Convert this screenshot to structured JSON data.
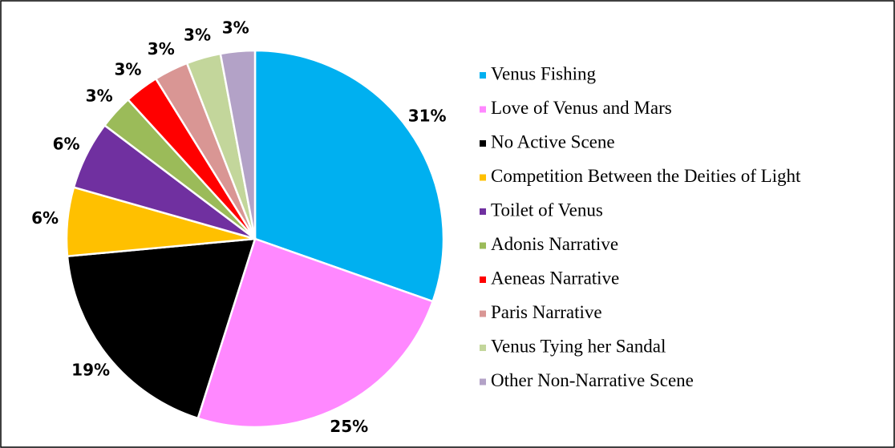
{
  "chart_data": {
    "type": "pie",
    "categories": [
      "Venus Fishing",
      "Love of Venus and Mars",
      "No Active Scene",
      "Competition Between the Deities of Light",
      "Toilet of Venus",
      "Adonis Narrative",
      "Aeneas Narrative",
      "Paris Narrative",
      "Venus Tying her Sandal",
      "Other Non-Narrative Scene"
    ],
    "values": [
      31,
      25,
      19,
      6,
      6,
      3,
      3,
      3,
      3,
      3
    ],
    "value_labels": [
      "31%",
      "25%",
      "19%",
      "6%",
      "6%",
      "3%",
      "3%",
      "3%",
      "3%",
      "3%"
    ],
    "colors": [
      "#00b0f0",
      "#ff88ff",
      "#000000",
      "#ffc000",
      "#7030a0",
      "#9bbb59",
      "#ff0000",
      "#d99694",
      "#c3d69b",
      "#b3a2c7"
    ],
    "legend": "right"
  }
}
